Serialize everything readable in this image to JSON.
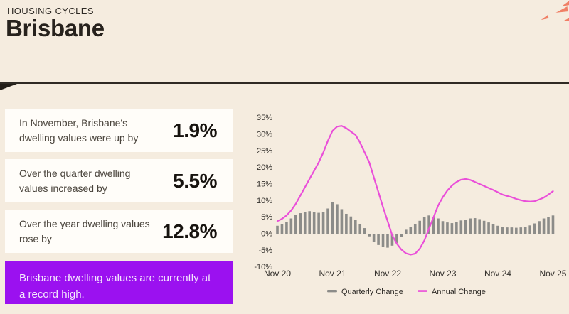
{
  "header": {
    "eyebrow": "HOUSING CYCLES",
    "title": "Brisbane"
  },
  "stats": [
    {
      "label": "In November, Brisbane's dwelling values were up by",
      "value": "1.9%"
    },
    {
      "label": "Over the quarter dwelling values increased by",
      "value": "5.5%"
    },
    {
      "label": "Over the year dwelling values rose by",
      "value": "12.8%"
    }
  ],
  "callout": {
    "text": "Brisbane dwelling values are currently at a record high."
  },
  "colors": {
    "background": "#f5ecdf",
    "card": "#fffdf9",
    "callout_purple": "#9b11f0",
    "bar_gray": "#8c8c89",
    "line_magenta": "#ea4fd9",
    "confetti_coral": "#f08066",
    "text_dark": "#27221d",
    "axis_text": "#33302c"
  },
  "chart_data": {
    "type": "bar",
    "title": "",
    "xlabel": "",
    "ylabel": "",
    "x_unit": "month",
    "x_tick_labels": [
      "Nov 20",
      "Nov 21",
      "Nov 22",
      "Nov 23",
      "Nov 24",
      "Nov 25"
    ],
    "x_tick_month_index": [
      0,
      12,
      24,
      36,
      48,
      60
    ],
    "yticks": [
      35,
      30,
      25,
      20,
      15,
      10,
      5,
      0,
      -5,
      -10
    ],
    "ytick_suffix": "%",
    "ylim": [
      -10,
      35
    ],
    "grid": false,
    "legend_position": "bottom",
    "series": [
      {
        "name": "Quarterly Change",
        "type": "bar",
        "color": "#8c8c89",
        "values": [
          2.4,
          2.8,
          3.6,
          4.6,
          5.6,
          6.2,
          6.6,
          6.8,
          6.5,
          6.3,
          6.6,
          7.6,
          9.5,
          8.9,
          7.4,
          6.0,
          5.2,
          4.1,
          3.0,
          1.7,
          -0.8,
          -2.4,
          -3.4,
          -3.9,
          -4.2,
          -3.6,
          -2.8,
          -1.0,
          1.2,
          2.0,
          3.0,
          3.9,
          5.0,
          5.5,
          4.9,
          4.6,
          3.8,
          3.4,
          3.2,
          3.6,
          4.0,
          4.2,
          4.6,
          4.7,
          4.4,
          3.9,
          3.4,
          3.0,
          2.4,
          2.1,
          1.9,
          1.9,
          1.8,
          1.9,
          2.1,
          2.5,
          3.1,
          3.8,
          4.6,
          5.1,
          5.5
        ]
      },
      {
        "name": "Annual Change",
        "type": "line",
        "color": "#ea4fd9",
        "values": [
          3.8,
          4.5,
          5.5,
          7.0,
          9.0,
          11.5,
          14.0,
          16.5,
          19.0,
          21.5,
          24.5,
          28.0,
          31.0,
          32.3,
          32.5,
          31.8,
          30.8,
          29.8,
          27.5,
          24.5,
          21.5,
          17.0,
          12.5,
          8.0,
          3.8,
          -0.5,
          -3.0,
          -4.8,
          -5.9,
          -6.3,
          -6.0,
          -4.5,
          -2.0,
          1.5,
          5.0,
          8.5,
          11.0,
          13.0,
          14.5,
          15.6,
          16.3,
          16.5,
          16.2,
          15.6,
          15.0,
          14.4,
          13.8,
          13.2,
          12.5,
          11.8,
          11.4,
          11.0,
          10.5,
          10.1,
          9.8,
          9.7,
          9.8,
          10.3,
          10.9,
          11.8,
          12.8
        ]
      }
    ]
  }
}
